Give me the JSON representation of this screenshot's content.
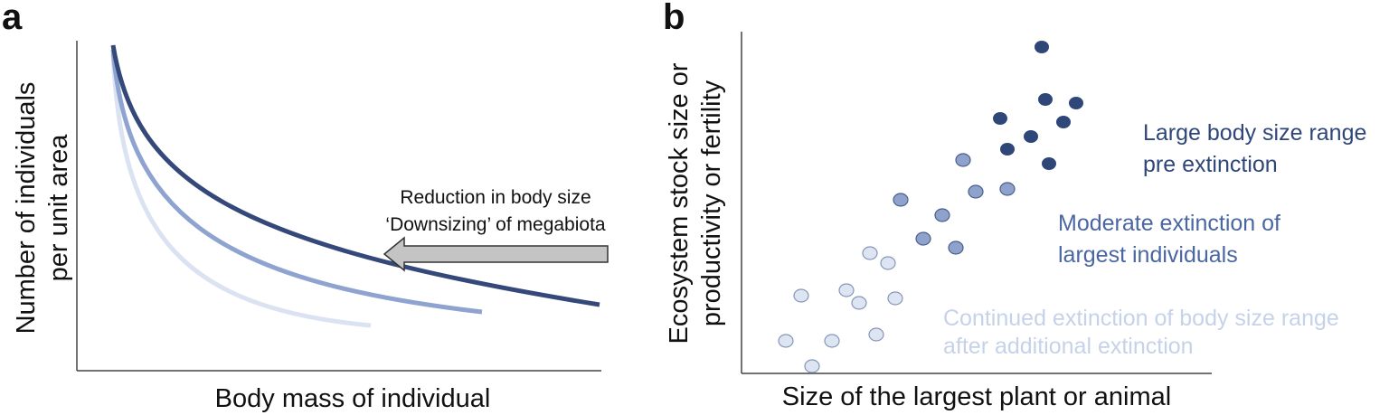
{
  "panel_a": {
    "label": "a",
    "y_label": [
      "Number of individuals",
      "per unit area"
    ],
    "x_label": "Body mass of individual",
    "arrow_text": [
      "Reduction in body size",
      "‘Downsizing’ of megabiota"
    ]
  },
  "panel_b": {
    "label": "b",
    "y_label": [
      "Ecosystem stock size or",
      "productivity or fertility"
    ],
    "x_label": "Size of the largest plant or animal",
    "groups": [
      {
        "text": [
          "Large body size range",
          "pre extinction"
        ]
      },
      {
        "text": [
          "Moderate extinction of",
          "largest individuals"
        ]
      },
      {
        "text": [
          "Continued extinction of body size range",
          "after additional extinction"
        ]
      }
    ]
  }
}
